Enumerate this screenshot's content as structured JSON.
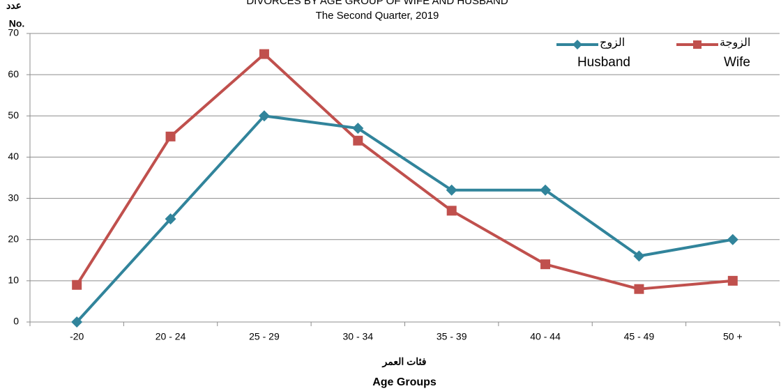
{
  "chart_data": {
    "type": "line",
    "title": "DIVORCES BY AGE GROUP OF WIFE AND HUSBAND",
    "subtitle": "The Second Quarter, 2019",
    "y_label_ar": "عدد",
    "y_label": "No.",
    "x_label_ar": "فئات العمر",
    "x_label": "Age Groups",
    "categories": [
      "-20",
      "20 - 24",
      "25 - 29",
      "30 - 34",
      "35 - 39",
      "40 - 44",
      "45 - 49",
      "50 +"
    ],
    "series": [
      {
        "name": "Wife",
        "name_ar": "الزوجة",
        "color": "#c0504d",
        "marker": "square",
        "values": [
          9,
          45,
          65,
          44,
          27,
          14,
          8,
          10
        ]
      },
      {
        "name": "Husband",
        "name_ar": "الزوج",
        "color": "#31849b",
        "marker": "diamond",
        "values": [
          0,
          25,
          50,
          47,
          32,
          32,
          16,
          20
        ]
      }
    ],
    "ylim": [
      0,
      70
    ],
    "yticks": [
      0,
      10,
      20,
      30,
      40,
      50,
      60,
      70
    ],
    "grid": true,
    "legend": "top-right"
  }
}
